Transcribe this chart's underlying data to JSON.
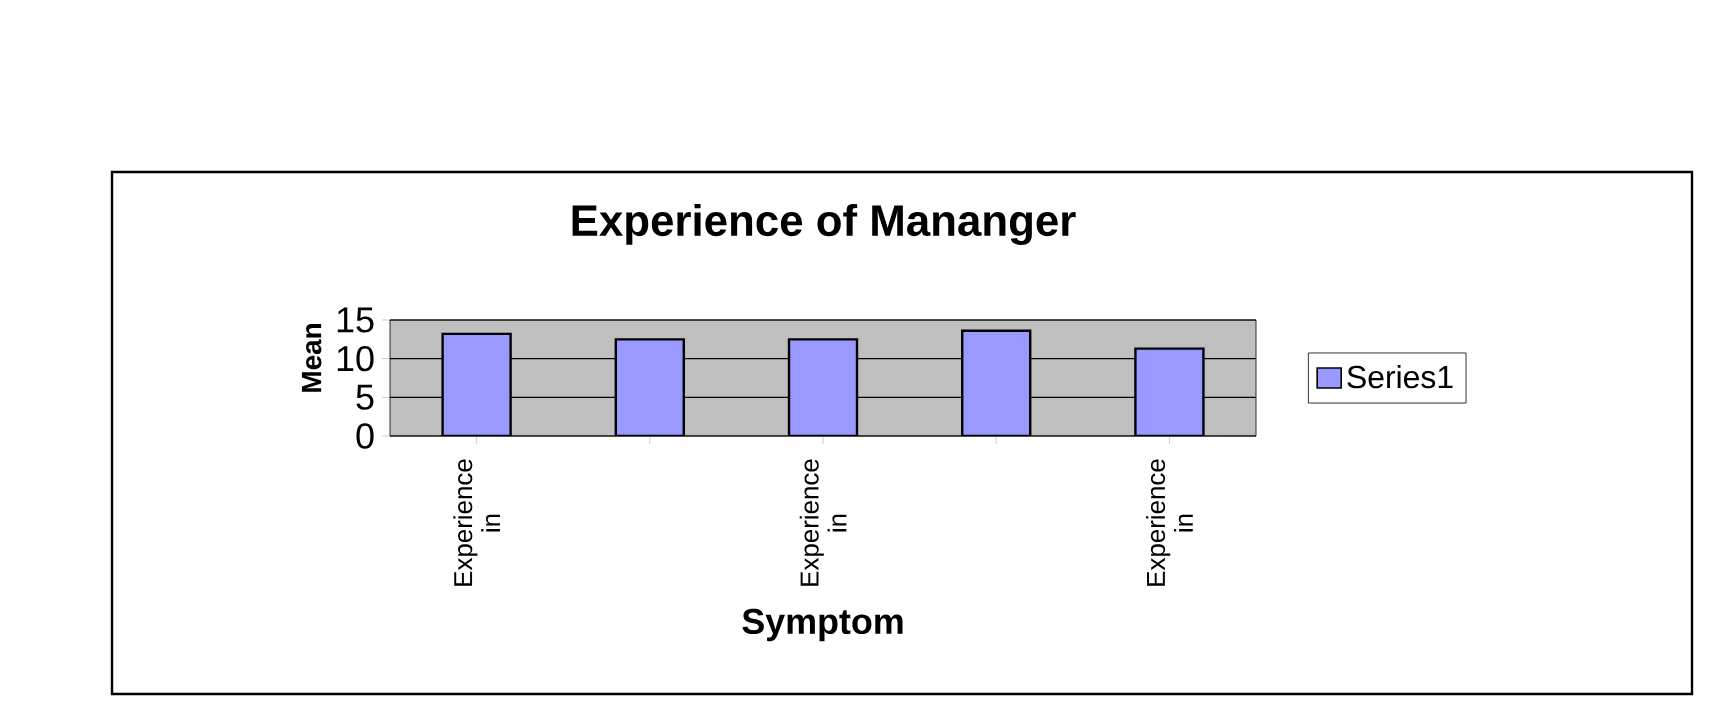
{
  "chart_data": {
    "type": "bar",
    "title": "Experience of Mananger",
    "xlabel": "Symptom",
    "ylabel": "Mean",
    "categories": [
      "Experience in",
      null,
      "Experience in",
      null,
      "Experience in"
    ],
    "series": [
      {
        "name": "Series1",
        "color": "#9999ff",
        "values": [
          13.2,
          12.5,
          12.5,
          13.6,
          11.3
        ]
      }
    ],
    "ylim": [
      0,
      15
    ],
    "yticks": [
      0,
      5,
      10,
      15
    ],
    "grid": "y",
    "legend": "right"
  }
}
